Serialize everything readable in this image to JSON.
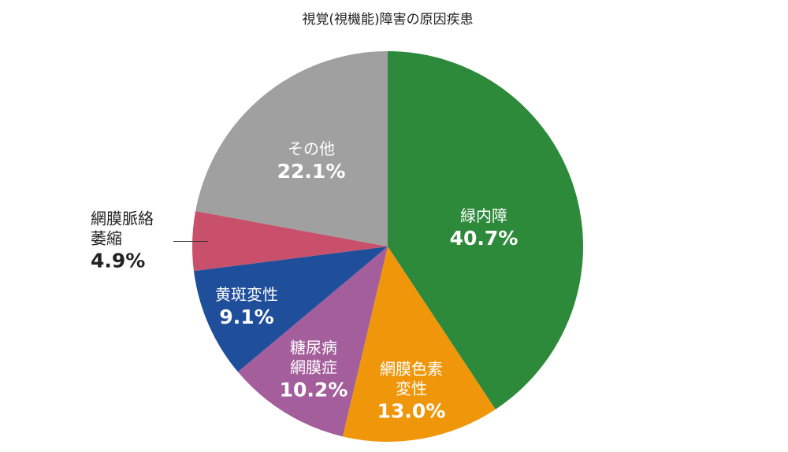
{
  "chart_data": {
    "type": "pie",
    "title": "視覚(視機能)障害の原因疾患",
    "categories": [
      "緑内障",
      "網膜色素\n変性",
      "糖尿病\n網膜症",
      "黄斑変性",
      "網膜脈絡\n萎縮",
      "その他"
    ],
    "values": [
      40.7,
      13.0,
      10.2,
      9.1,
      4.9,
      22.1
    ],
    "value_labels": [
      "40.7%",
      "13.0%",
      "10.2%",
      "9.1%",
      "4.9%",
      "22.1%"
    ],
    "colors": [
      "#2e8a3b",
      "#f0960b",
      "#a35e9b",
      "#1f4f9b",
      "#c8506b",
      "#a0a0a0"
    ]
  }
}
